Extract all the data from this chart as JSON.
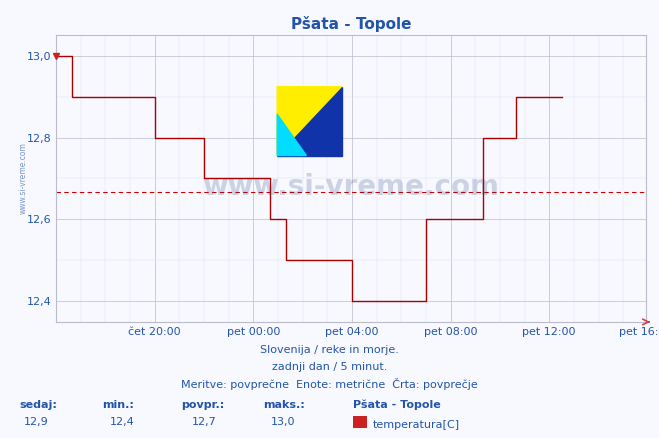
{
  "title": "Pšata - Topole",
  "subtitle1": "Slovenija / reke in morje.",
  "subtitle2": "zadnji dan / 5 minut.",
  "subtitle3": "Meritve: povprečne  Enote: metrične  Črta: povprečje",
  "xlabel_ticks": [
    "čet 20:00",
    "pet 00:00",
    "pet 04:00",
    "pet 08:00",
    "pet 12:00",
    "pet 16:00"
  ],
  "ylim": [
    12.35,
    13.05
  ],
  "xlim": [
    0,
    287
  ],
  "avg_line": 12.666,
  "line_color": "#aa0000",
  "avg_line_color": "#cc0000",
  "grid_color_major": "#bbbbcc",
  "grid_color_minor": "#ddddee",
  "bg_color": "#f8f8ff",
  "title_color": "#2255aa",
  "label_color": "#2255aa",
  "watermark": "www.si-vreme.com",
  "footer_label1": "sedaj:",
  "footer_label2": "min.:",
  "footer_label3": "povpr.:",
  "footer_label4": "maks.:",
  "footer_val1": "12,9",
  "footer_val2": "12,4",
  "footer_val3": "12,7",
  "footer_val4": "13,0",
  "footer_station": "Pšata - Topole",
  "footer_series": "temperatura[C]",
  "tick_positions_x": [
    48,
    96,
    144,
    192,
    240,
    287
  ],
  "temperature_data": [
    13.0,
    13.0,
    13.0,
    13.0,
    13.0,
    13.0,
    13.0,
    13.0,
    12.9,
    12.9,
    12.9,
    12.9,
    12.9,
    12.9,
    12.9,
    12.9,
    12.9,
    12.9,
    12.9,
    12.9,
    12.9,
    12.9,
    12.9,
    12.9,
    12.9,
    12.9,
    12.9,
    12.9,
    12.9,
    12.9,
    12.9,
    12.9,
    12.9,
    12.9,
    12.9,
    12.9,
    12.9,
    12.9,
    12.9,
    12.9,
    12.9,
    12.9,
    12.9,
    12.9,
    12.9,
    12.9,
    12.9,
    12.9,
    12.8,
    12.8,
    12.8,
    12.8,
    12.8,
    12.8,
    12.8,
    12.8,
    12.8,
    12.8,
    12.8,
    12.8,
    12.8,
    12.8,
    12.8,
    12.8,
    12.8,
    12.8,
    12.8,
    12.8,
    12.8,
    12.8,
    12.8,
    12.8,
    12.7,
    12.7,
    12.7,
    12.7,
    12.7,
    12.7,
    12.7,
    12.7,
    12.7,
    12.7,
    12.7,
    12.7,
    12.7,
    12.7,
    12.7,
    12.7,
    12.7,
    12.7,
    12.7,
    12.7,
    12.7,
    12.7,
    12.7,
    12.7,
    12.7,
    12.7,
    12.7,
    12.7,
    12.7,
    12.7,
    12.7,
    12.7,
    12.6,
    12.6,
    12.6,
    12.6,
    12.6,
    12.6,
    12.6,
    12.6,
    12.5,
    12.5,
    12.5,
    12.5,
    12.5,
    12.5,
    12.5,
    12.5,
    12.5,
    12.5,
    12.5,
    12.5,
    12.5,
    12.5,
    12.5,
    12.5,
    12.5,
    12.5,
    12.5,
    12.5,
    12.5,
    12.5,
    12.5,
    12.5,
    12.5,
    12.5,
    12.5,
    12.5,
    12.5,
    12.5,
    12.5,
    12.5,
    12.4,
    12.4,
    12.4,
    12.4,
    12.4,
    12.4,
    12.4,
    12.4,
    12.4,
    12.4,
    12.4,
    12.4,
    12.4,
    12.4,
    12.4,
    12.4,
    12.4,
    12.4,
    12.4,
    12.4,
    12.4,
    12.4,
    12.4,
    12.4,
    12.4,
    12.4,
    12.4,
    12.4,
    12.4,
    12.4,
    12.4,
    12.4,
    12.4,
    12.4,
    12.4,
    12.4,
    12.6,
    12.6,
    12.6,
    12.6,
    12.6,
    12.6,
    12.6,
    12.6,
    12.6,
    12.6,
    12.6,
    12.6,
    12.6,
    12.6,
    12.6,
    12.6,
    12.6,
    12.6,
    12.6,
    12.6,
    12.6,
    12.6,
    12.6,
    12.6,
    12.6,
    12.6,
    12.6,
    12.6,
    12.8,
    12.8,
    12.8,
    12.8,
    12.8,
    12.8,
    12.8,
    12.8,
    12.8,
    12.8,
    12.8,
    12.8,
    12.8,
    12.8,
    12.8,
    12.8,
    12.9,
    12.9,
    12.9,
    12.9,
    12.9,
    12.9,
    12.9,
    12.9,
    12.9,
    12.9,
    12.9,
    12.9,
    12.9,
    12.9,
    12.9,
    12.9,
    12.9,
    12.9,
    12.9,
    12.9,
    12.9,
    12.9,
    12.9
  ]
}
